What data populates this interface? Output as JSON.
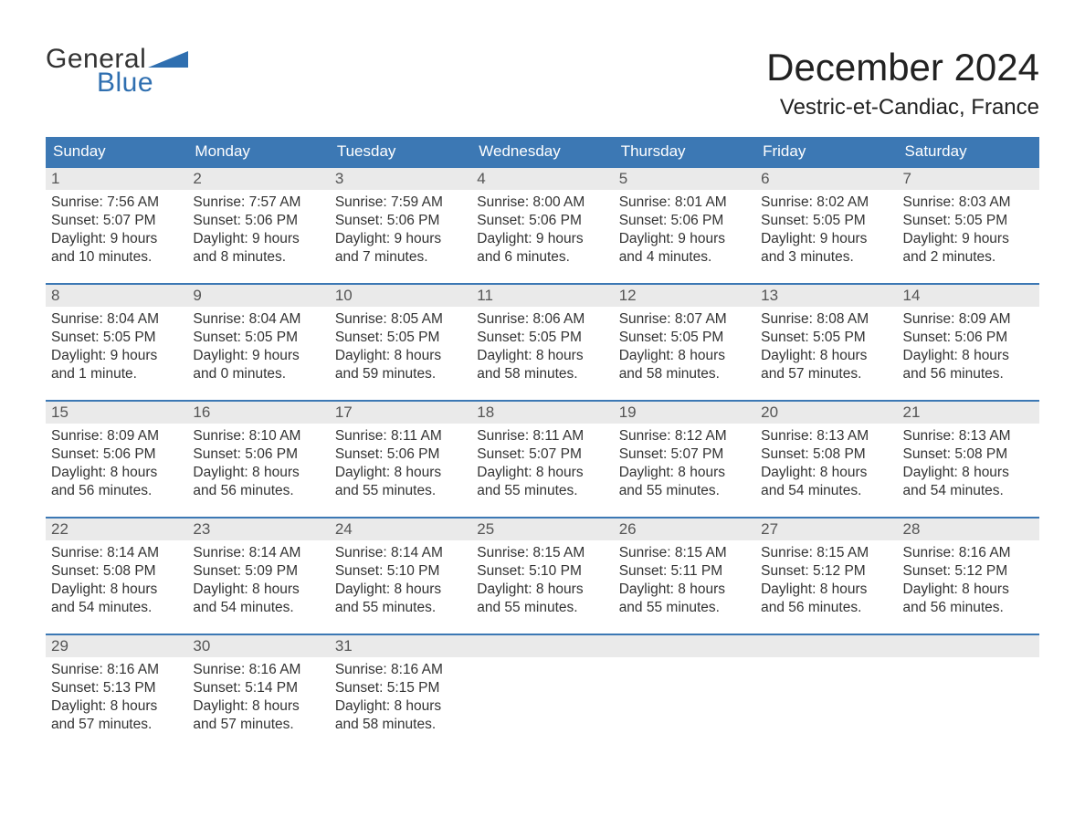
{
  "brand": {
    "word1": "General",
    "word2": "Blue"
  },
  "colors": {
    "accent": "#3c78b4",
    "logo_blue": "#2f6fb0",
    "daynum_bg": "#eaeaea",
    "text_dark": "#222222",
    "text_body": "#333333",
    "bg": "#ffffff"
  },
  "typography": {
    "title_fontsize": 42,
    "location_fontsize": 24,
    "dow_fontsize": 17,
    "body_fontsize": 15.5,
    "font_family": "Arial"
  },
  "title": "December 2024",
  "location": "Vestric-et-Candiac, France",
  "days_of_week": [
    "Sunday",
    "Monday",
    "Tuesday",
    "Wednesday",
    "Thursday",
    "Friday",
    "Saturday"
  ],
  "calendar": {
    "columns": 7,
    "rows": 5
  },
  "days": [
    {
      "n": "1",
      "sunrise": "Sunrise: 7:56 AM",
      "sunset": "Sunset: 5:07 PM",
      "d1": "Daylight: 9 hours",
      "d2": "and 10 minutes."
    },
    {
      "n": "2",
      "sunrise": "Sunrise: 7:57 AM",
      "sunset": "Sunset: 5:06 PM",
      "d1": "Daylight: 9 hours",
      "d2": "and 8 minutes."
    },
    {
      "n": "3",
      "sunrise": "Sunrise: 7:59 AM",
      "sunset": "Sunset: 5:06 PM",
      "d1": "Daylight: 9 hours",
      "d2": "and 7 minutes."
    },
    {
      "n": "4",
      "sunrise": "Sunrise: 8:00 AM",
      "sunset": "Sunset: 5:06 PM",
      "d1": "Daylight: 9 hours",
      "d2": "and 6 minutes."
    },
    {
      "n": "5",
      "sunrise": "Sunrise: 8:01 AM",
      "sunset": "Sunset: 5:06 PM",
      "d1": "Daylight: 9 hours",
      "d2": "and 4 minutes."
    },
    {
      "n": "6",
      "sunrise": "Sunrise: 8:02 AM",
      "sunset": "Sunset: 5:05 PM",
      "d1": "Daylight: 9 hours",
      "d2": "and 3 minutes."
    },
    {
      "n": "7",
      "sunrise": "Sunrise: 8:03 AM",
      "sunset": "Sunset: 5:05 PM",
      "d1": "Daylight: 9 hours",
      "d2": "and 2 minutes."
    },
    {
      "n": "8",
      "sunrise": "Sunrise: 8:04 AM",
      "sunset": "Sunset: 5:05 PM",
      "d1": "Daylight: 9 hours",
      "d2": "and 1 minute."
    },
    {
      "n": "9",
      "sunrise": "Sunrise: 8:04 AM",
      "sunset": "Sunset: 5:05 PM",
      "d1": "Daylight: 9 hours",
      "d2": "and 0 minutes."
    },
    {
      "n": "10",
      "sunrise": "Sunrise: 8:05 AM",
      "sunset": "Sunset: 5:05 PM",
      "d1": "Daylight: 8 hours",
      "d2": "and 59 minutes."
    },
    {
      "n": "11",
      "sunrise": "Sunrise: 8:06 AM",
      "sunset": "Sunset: 5:05 PM",
      "d1": "Daylight: 8 hours",
      "d2": "and 58 minutes."
    },
    {
      "n": "12",
      "sunrise": "Sunrise: 8:07 AM",
      "sunset": "Sunset: 5:05 PM",
      "d1": "Daylight: 8 hours",
      "d2": "and 58 minutes."
    },
    {
      "n": "13",
      "sunrise": "Sunrise: 8:08 AM",
      "sunset": "Sunset: 5:05 PM",
      "d1": "Daylight: 8 hours",
      "d2": "and 57 minutes."
    },
    {
      "n": "14",
      "sunrise": "Sunrise: 8:09 AM",
      "sunset": "Sunset: 5:06 PM",
      "d1": "Daylight: 8 hours",
      "d2": "and 56 minutes."
    },
    {
      "n": "15",
      "sunrise": "Sunrise: 8:09 AM",
      "sunset": "Sunset: 5:06 PM",
      "d1": "Daylight: 8 hours",
      "d2": "and 56 minutes."
    },
    {
      "n": "16",
      "sunrise": "Sunrise: 8:10 AM",
      "sunset": "Sunset: 5:06 PM",
      "d1": "Daylight: 8 hours",
      "d2": "and 56 minutes."
    },
    {
      "n": "17",
      "sunrise": "Sunrise: 8:11 AM",
      "sunset": "Sunset: 5:06 PM",
      "d1": "Daylight: 8 hours",
      "d2": "and 55 minutes."
    },
    {
      "n": "18",
      "sunrise": "Sunrise: 8:11 AM",
      "sunset": "Sunset: 5:07 PM",
      "d1": "Daylight: 8 hours",
      "d2": "and 55 minutes."
    },
    {
      "n": "19",
      "sunrise": "Sunrise: 8:12 AM",
      "sunset": "Sunset: 5:07 PM",
      "d1": "Daylight: 8 hours",
      "d2": "and 55 minutes."
    },
    {
      "n": "20",
      "sunrise": "Sunrise: 8:13 AM",
      "sunset": "Sunset: 5:08 PM",
      "d1": "Daylight: 8 hours",
      "d2": "and 54 minutes."
    },
    {
      "n": "21",
      "sunrise": "Sunrise: 8:13 AM",
      "sunset": "Sunset: 5:08 PM",
      "d1": "Daylight: 8 hours",
      "d2": "and 54 minutes."
    },
    {
      "n": "22",
      "sunrise": "Sunrise: 8:14 AM",
      "sunset": "Sunset: 5:08 PM",
      "d1": "Daylight: 8 hours",
      "d2": "and 54 minutes."
    },
    {
      "n": "23",
      "sunrise": "Sunrise: 8:14 AM",
      "sunset": "Sunset: 5:09 PM",
      "d1": "Daylight: 8 hours",
      "d2": "and 54 minutes."
    },
    {
      "n": "24",
      "sunrise": "Sunrise: 8:14 AM",
      "sunset": "Sunset: 5:10 PM",
      "d1": "Daylight: 8 hours",
      "d2": "and 55 minutes."
    },
    {
      "n": "25",
      "sunrise": "Sunrise: 8:15 AM",
      "sunset": "Sunset: 5:10 PM",
      "d1": "Daylight: 8 hours",
      "d2": "and 55 minutes."
    },
    {
      "n": "26",
      "sunrise": "Sunrise: 8:15 AM",
      "sunset": "Sunset: 5:11 PM",
      "d1": "Daylight: 8 hours",
      "d2": "and 55 minutes."
    },
    {
      "n": "27",
      "sunrise": "Sunrise: 8:15 AM",
      "sunset": "Sunset: 5:12 PM",
      "d1": "Daylight: 8 hours",
      "d2": "and 56 minutes."
    },
    {
      "n": "28",
      "sunrise": "Sunrise: 8:16 AM",
      "sunset": "Sunset: 5:12 PM",
      "d1": "Daylight: 8 hours",
      "d2": "and 56 minutes."
    },
    {
      "n": "29",
      "sunrise": "Sunrise: 8:16 AM",
      "sunset": "Sunset: 5:13 PM",
      "d1": "Daylight: 8 hours",
      "d2": "and 57 minutes."
    },
    {
      "n": "30",
      "sunrise": "Sunrise: 8:16 AM",
      "sunset": "Sunset: 5:14 PM",
      "d1": "Daylight: 8 hours",
      "d2": "and 57 minutes."
    },
    {
      "n": "31",
      "sunrise": "Sunrise: 8:16 AM",
      "sunset": "Sunset: 5:15 PM",
      "d1": "Daylight: 8 hours",
      "d2": "and 58 minutes."
    }
  ]
}
